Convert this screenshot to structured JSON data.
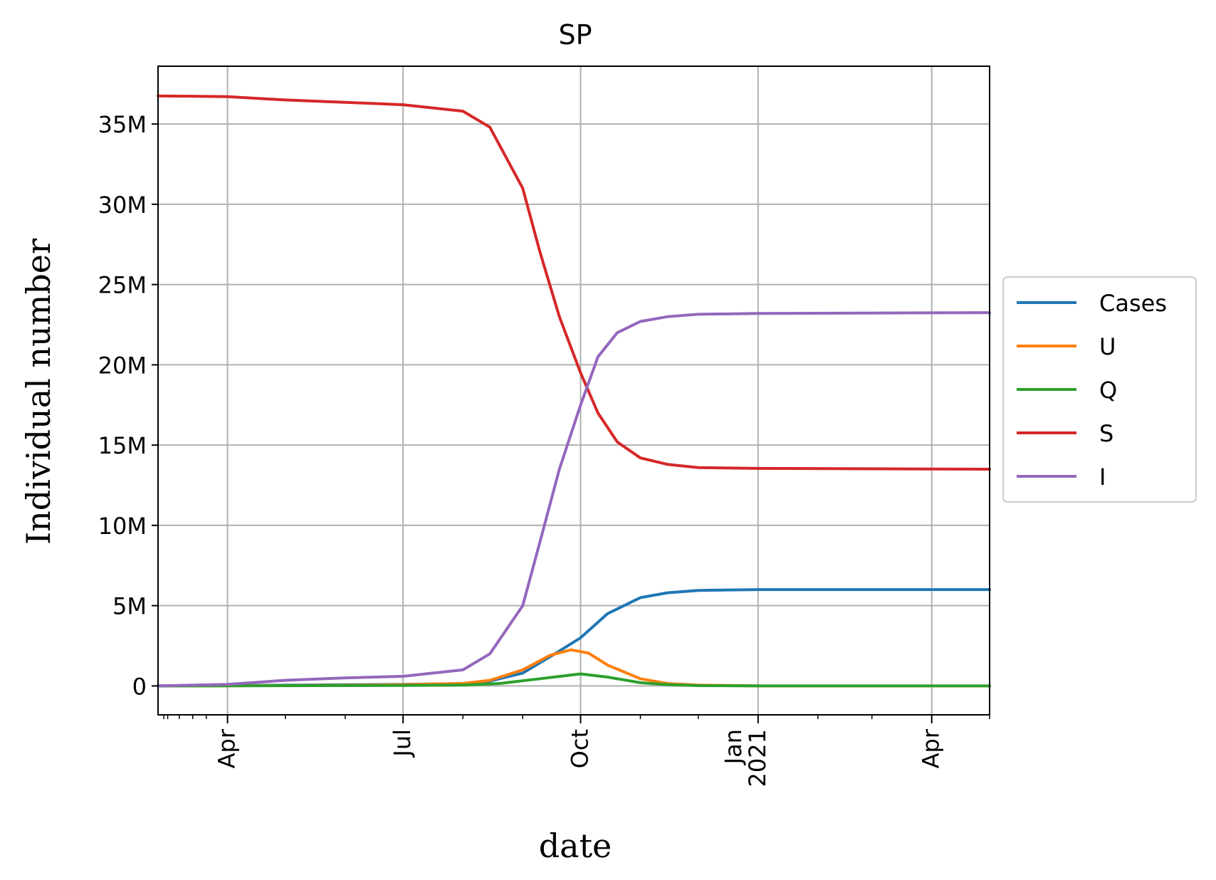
{
  "chart_data": {
    "type": "line",
    "title": "SP",
    "xlabel": "date",
    "ylabel": "Individual number",
    "x_tick_labels": [
      {
        "date": "2020-04-01",
        "lines": [
          "Apr"
        ]
      },
      {
        "date": "2020-07-01",
        "lines": [
          "Jul"
        ]
      },
      {
        "date": "2020-10-01",
        "lines": [
          "Oct"
        ]
      },
      {
        "date": "2021-01-01",
        "lines": [
          "Jan",
          "2021"
        ]
      },
      {
        "date": "2021-04-01",
        "lines": [
          "Apr"
        ]
      }
    ],
    "y_tick_labels": [
      {
        "value": 0,
        "label": "0"
      },
      {
        "value": 5000000,
        "label": "5M"
      },
      {
        "value": 10000000,
        "label": "10M"
      },
      {
        "value": 15000000,
        "label": "15M"
      },
      {
        "value": 20000000,
        "label": "20M"
      },
      {
        "value": 25000000,
        "label": "25M"
      },
      {
        "value": 30000000,
        "label": "30M"
      },
      {
        "value": 35000000,
        "label": "35M"
      }
    ],
    "xlim": [
      "2020-02-25",
      "2021-05-01"
    ],
    "ylim": [
      -1800000,
      38600000
    ],
    "grid": true,
    "legend_position": "center-right, outside plot",
    "series": [
      {
        "name": "Cases",
        "color": "#1f77b4",
        "points": [
          [
            "2020-02-25",
            0
          ],
          [
            "2020-04-01",
            20000
          ],
          [
            "2020-06-01",
            70000
          ],
          [
            "2020-07-01",
            100000
          ],
          [
            "2020-08-01",
            150000
          ],
          [
            "2020-08-15",
            300000
          ],
          [
            "2020-09-01",
            800000
          ],
          [
            "2020-09-15",
            1800000
          ],
          [
            "2020-10-01",
            3000000
          ],
          [
            "2020-10-15",
            4500000
          ],
          [
            "2020-11-01",
            5500000
          ],
          [
            "2020-11-15",
            5800000
          ],
          [
            "2020-12-01",
            5950000
          ],
          [
            "2021-01-01",
            6000000
          ],
          [
            "2021-05-01",
            6000000
          ]
        ]
      },
      {
        "name": "U",
        "color": "#ff7f0e",
        "points": [
          [
            "2020-02-25",
            0
          ],
          [
            "2020-04-01",
            10000
          ],
          [
            "2020-06-01",
            40000
          ],
          [
            "2020-07-01",
            80000
          ],
          [
            "2020-08-01",
            150000
          ],
          [
            "2020-08-15",
            350000
          ],
          [
            "2020-09-01",
            1000000
          ],
          [
            "2020-09-15",
            1900000
          ],
          [
            "2020-09-26",
            2250000
          ],
          [
            "2020-10-05",
            2050000
          ],
          [
            "2020-10-15",
            1300000
          ],
          [
            "2020-11-01",
            450000
          ],
          [
            "2020-11-15",
            150000
          ],
          [
            "2020-12-01",
            50000
          ],
          [
            "2021-01-01",
            0
          ],
          [
            "2021-05-01",
            0
          ]
        ]
      },
      {
        "name": "Q",
        "color": "#2ca02c",
        "points": [
          [
            "2020-02-25",
            0
          ],
          [
            "2020-04-01",
            5000
          ],
          [
            "2020-07-01",
            30000
          ],
          [
            "2020-08-01",
            60000
          ],
          [
            "2020-08-20",
            150000
          ],
          [
            "2020-09-10",
            450000
          ],
          [
            "2020-10-01",
            750000
          ],
          [
            "2020-10-15",
            550000
          ],
          [
            "2020-11-01",
            200000
          ],
          [
            "2020-11-15",
            80000
          ],
          [
            "2020-12-01",
            20000
          ],
          [
            "2021-01-01",
            0
          ],
          [
            "2021-05-01",
            0
          ]
        ]
      },
      {
        "name": "S",
        "color": "#d62728",
        "points": [
          [
            "2020-02-25",
            36750000
          ],
          [
            "2020-04-01",
            36700000
          ],
          [
            "2020-05-01",
            36500000
          ],
          [
            "2020-06-01",
            36350000
          ],
          [
            "2020-07-01",
            36200000
          ],
          [
            "2020-08-01",
            35800000
          ],
          [
            "2020-08-15",
            34800000
          ],
          [
            "2020-09-01",
            31000000
          ],
          [
            "2020-09-10",
            27000000
          ],
          [
            "2020-09-20",
            23000000
          ],
          [
            "2020-10-01",
            19500000
          ],
          [
            "2020-10-10",
            17000000
          ],
          [
            "2020-10-20",
            15200000
          ],
          [
            "2020-11-01",
            14200000
          ],
          [
            "2020-11-15",
            13800000
          ],
          [
            "2020-12-01",
            13600000
          ],
          [
            "2021-01-01",
            13550000
          ],
          [
            "2021-05-01",
            13500000
          ]
        ]
      },
      {
        "name": "I",
        "color": "#9467bd",
        "points": [
          [
            "2020-02-25",
            0
          ],
          [
            "2020-04-01",
            100000
          ],
          [
            "2020-05-01",
            350000
          ],
          [
            "2020-06-01",
            500000
          ],
          [
            "2020-07-01",
            600000
          ],
          [
            "2020-08-01",
            1000000
          ],
          [
            "2020-08-15",
            2000000
          ],
          [
            "2020-09-01",
            5000000
          ],
          [
            "2020-09-10",
            9000000
          ],
          [
            "2020-09-20",
            13500000
          ],
          [
            "2020-10-01",
            17500000
          ],
          [
            "2020-10-10",
            20500000
          ],
          [
            "2020-10-20",
            22000000
          ],
          [
            "2020-11-01",
            22700000
          ],
          [
            "2020-11-15",
            23000000
          ],
          [
            "2020-12-01",
            23150000
          ],
          [
            "2021-01-01",
            23200000
          ],
          [
            "2021-05-01",
            23250000
          ]
        ]
      }
    ]
  }
}
